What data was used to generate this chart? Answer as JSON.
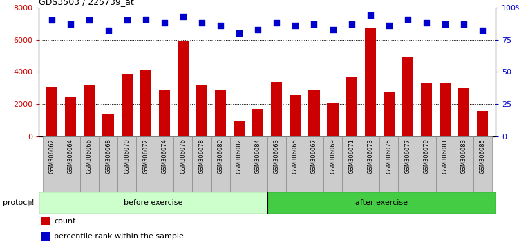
{
  "title": "GDS3503 / 225739_at",
  "categories": [
    "GSM306062",
    "GSM306064",
    "GSM306066",
    "GSM306068",
    "GSM306070",
    "GSM306072",
    "GSM306074",
    "GSM306076",
    "GSM306078",
    "GSM306080",
    "GSM306082",
    "GSM306084",
    "GSM306063",
    "GSM306065",
    "GSM306067",
    "GSM306069",
    "GSM306071",
    "GSM306073",
    "GSM306075",
    "GSM306077",
    "GSM306079",
    "GSM306081",
    "GSM306083",
    "GSM306085"
  ],
  "counts": [
    3100,
    2450,
    3200,
    1380,
    3870,
    4100,
    2870,
    5950,
    3220,
    2850,
    1000,
    1700,
    3400,
    2580,
    2850,
    2080,
    3680,
    6700,
    2720,
    4950,
    3330,
    3280,
    2980,
    1580
  ],
  "percentile_ranks": [
    90,
    87,
    90,
    82,
    90,
    91,
    88,
    93,
    88,
    86,
    80,
    83,
    88,
    86,
    87,
    83,
    87,
    94,
    86,
    91,
    88,
    87,
    87,
    82
  ],
  "bar_color": "#cc0000",
  "dot_color": "#0000cc",
  "ylim_left": [
    0,
    8000
  ],
  "ylim_right": [
    0,
    100
  ],
  "yticks_left": [
    0,
    2000,
    4000,
    6000,
    8000
  ],
  "ytick_labels_left": [
    "0",
    "2000",
    "4000",
    "6000",
    "8000"
  ],
  "yticks_right": [
    0,
    25,
    50,
    75,
    100
  ],
  "ytick_labels_right": [
    "0",
    "25",
    "50",
    "75",
    "100%"
  ],
  "group1_count": 12,
  "group2_count": 12,
  "group1_label": "before exercise",
  "group2_label": "after exercise",
  "group1_color": "#ccffcc",
  "group2_color": "#44cc44",
  "protocol_label": "protocol",
  "legend_count_label": "count",
  "legend_percentile_label": "percentile rank within the sample",
  "bar_width": 0.6,
  "dot_size": 40,
  "tick_bg_color": "#cccccc"
}
